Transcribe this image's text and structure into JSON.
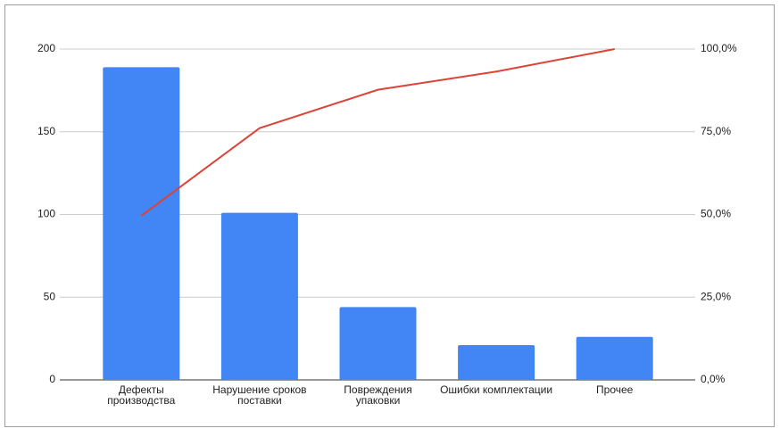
{
  "chart_data": {
    "type": "pareto",
    "categories": [
      "Дефекты\nпроизводства",
      "Нарушение сроков\nпоставки",
      "Повреждения\nупаковки",
      "Ошибки комплектации",
      "Прочее"
    ],
    "series": [
      {
        "type": "bar",
        "color": "#4285f4",
        "values": [
          189,
          101,
          44,
          21,
          26
        ]
      },
      {
        "type": "line",
        "axis": "y2",
        "color": "#db4437",
        "values": [
          49.6,
          76.1,
          87.7,
          93.2,
          100
        ]
      }
    ],
    "ylim": [
      0,
      200
    ],
    "yticks": [
      0,
      50,
      100,
      150,
      200
    ],
    "y2lim": [
      0,
      100
    ],
    "y2ticks": [
      {
        "value": 0,
        "label": "0,0%"
      },
      {
        "value": 25,
        "label": "25,0%"
      },
      {
        "value": 50,
        "label": "50,0%"
      },
      {
        "value": 75,
        "label": "75,0%"
      },
      {
        "value": 100,
        "label": "100,0%"
      }
    ],
    "grid": true
  }
}
